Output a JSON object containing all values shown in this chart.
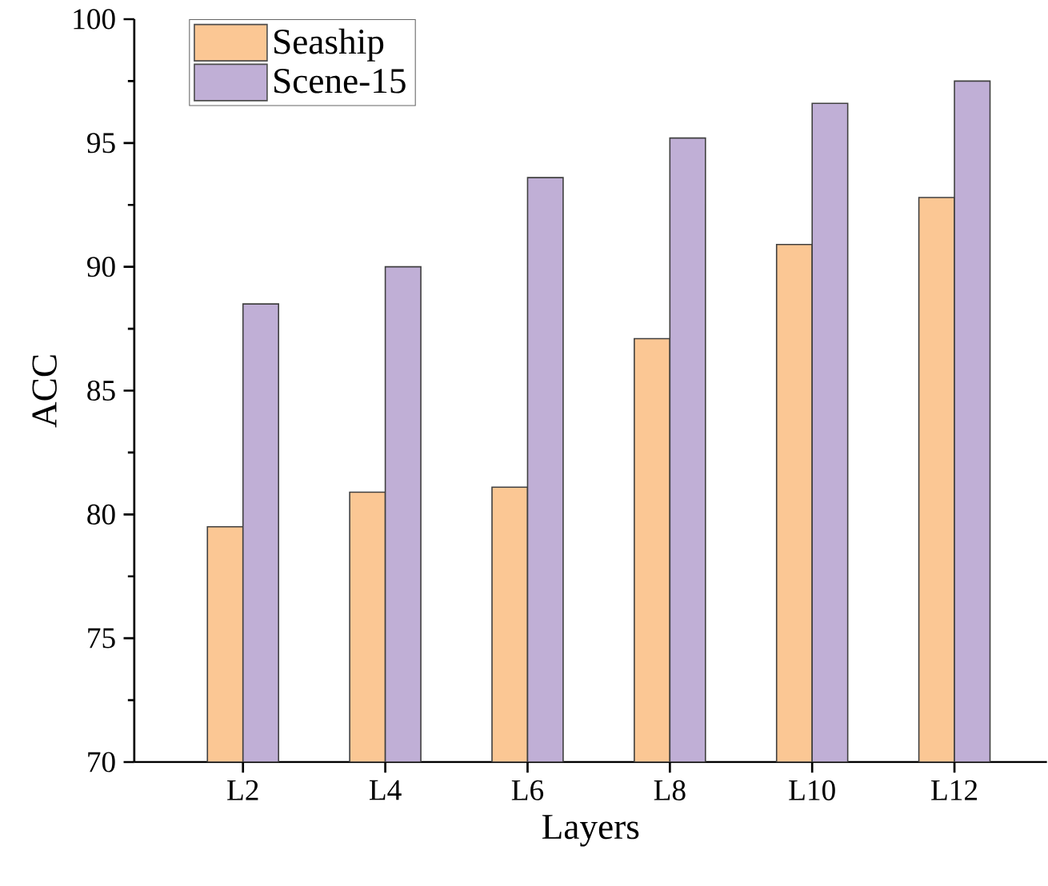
{
  "chart_data": {
    "type": "bar",
    "xlabel": "Layers",
    "ylabel": "ACC",
    "categories": [
      "L2",
      "L4",
      "L6",
      "L8",
      "L10",
      "L12"
    ],
    "series": [
      {
        "name": "Seaship",
        "color": "#fbc794",
        "values": [
          79.5,
          80.9,
          81.1,
          87.1,
          90.9,
          92.8
        ]
      },
      {
        "name": "Scene-15",
        "color": "#c0afd6",
        "values": [
          88.5,
          90.0,
          93.6,
          95.2,
          96.6,
          97.5
        ]
      }
    ],
    "ylim": [
      70,
      100
    ],
    "yticks": [
      70,
      75,
      80,
      85,
      90,
      95,
      100
    ],
    "grid": false,
    "legend": "top left"
  }
}
